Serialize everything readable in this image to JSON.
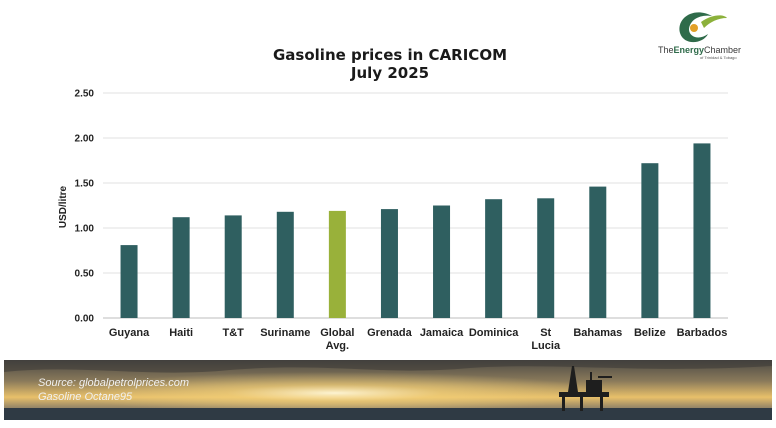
{
  "chart_data": {
    "type": "bar",
    "title": "Gasoline prices in CARICOM",
    "subtitle": "July 2025",
    "ylabel": "USD/litre",
    "ylim": [
      0,
      2.5
    ],
    "yticks": [
      "0.00",
      "0.50",
      "1.00",
      "1.50",
      "2.00",
      "2.50"
    ],
    "grid": true,
    "categories": [
      "Guyana",
      "Haiti",
      "T&T",
      "Suriname",
      "Global Avg.",
      "Grenada",
      "Jamaica",
      "Dominica",
      "St Lucia",
      "Bahamas",
      "Belize",
      "Barbados"
    ],
    "values": [
      0.81,
      1.12,
      1.14,
      1.18,
      1.19,
      1.21,
      1.25,
      1.32,
      1.33,
      1.46,
      1.72,
      1.94
    ],
    "colors": {
      "bar": "#2f5f60",
      "highlight": "#99b13a",
      "highlight_category": "Global Avg."
    }
  },
  "footer": {
    "source": "Source: globalpetrolprices.com",
    "note": "Gasoline Octane95"
  },
  "logo": {
    "brand_a": "The",
    "brand_b": "Energy",
    "brand_c": "Chamber",
    "tagline": "of Trinidad & Tobago"
  }
}
